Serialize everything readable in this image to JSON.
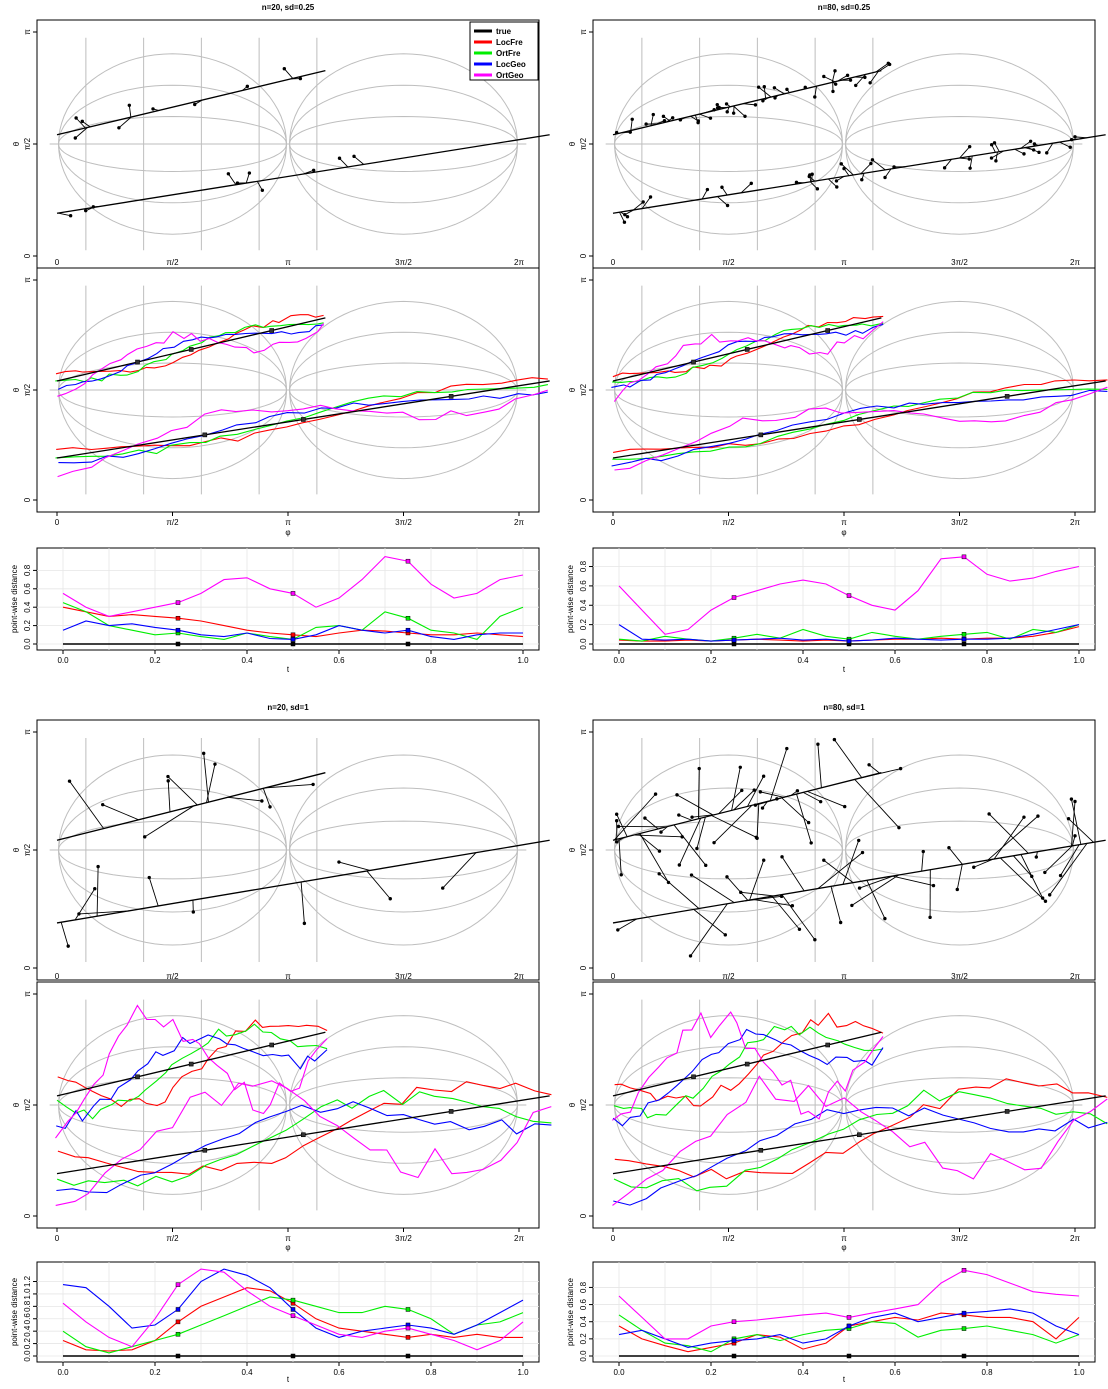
{
  "panels": [
    {
      "title": "n=20, sd=0.25",
      "scatter_ylabel": "θ",
      "curve_ylabel": "θ",
      "curve_xlabel": "φ",
      "dist_ylabel": "point-wise distance",
      "dist_xlabel": "t",
      "dist_yticks": [
        "0.0",
        "0.2",
        "0.4",
        "0.6",
        "0.8"
      ],
      "dist_ymax": 1.0
    },
    {
      "title": "n=80, sd=0.25",
      "scatter_ylabel": "θ",
      "curve_ylabel": "θ",
      "curve_xlabel": "φ",
      "dist_ylabel": "point-wise distance",
      "dist_xlabel": "t",
      "dist_yticks": [
        "0.0",
        "0.2",
        "0.4",
        "0.6",
        "0.8"
      ],
      "dist_ymax": 0.95
    },
    {
      "title": "n=20, sd=1",
      "scatter_ylabel": "θ",
      "curve_ylabel": "θ",
      "curve_xlabel": "φ",
      "dist_ylabel": "point-wise distance",
      "dist_xlabel": "t",
      "dist_yticks": [
        "0.0",
        "0.2",
        "0.4",
        "0.6",
        "0.8",
        "1.0",
        "1.2"
      ],
      "dist_ymax": 1.45
    },
    {
      "title": "n=80, sd=1",
      "scatter_ylabel": "θ",
      "curve_ylabel": "θ",
      "curve_xlabel": "φ",
      "dist_ylabel": "point-wise distance",
      "dist_xlabel": "t",
      "dist_yticks": [
        "0.0",
        "0.2",
        "0.4",
        "0.6",
        "0.8"
      ],
      "dist_ymax": 1.05
    }
  ],
  "axis_ticks": {
    "phi": [
      "0",
      "π/2",
      "π",
      "3π/2",
      "2π"
    ],
    "theta": [
      "0",
      "π/2",
      "π"
    ],
    "t": [
      "0.0",
      "0.2",
      "0.4",
      "0.6",
      "0.8",
      "1.0"
    ]
  },
  "legend": [
    {
      "label": "true",
      "color": "#000000"
    },
    {
      "label": "LocFre",
      "color": "#ff0000"
    },
    {
      "label": "OrtFre",
      "color": "#00ee00"
    },
    {
      "label": "LocGeo",
      "color": "#0000ff"
    },
    {
      "label": "OrtGeo",
      "color": "#ff00ff"
    }
  ],
  "colors": {
    "true": "#000000",
    "LocFre": "#ff0000",
    "OrtFre": "#00ee00",
    "LocGeo": "#0000ff",
    "OrtGeo": "#ff00ff",
    "grid": "#bebebe"
  },
  "chart_data": [
    {
      "type": "line",
      "panel": "n=20, sd=0.25",
      "x": [
        0.0,
        0.05,
        0.1,
        0.15,
        0.2,
        0.25,
        0.3,
        0.35,
        0.4,
        0.45,
        0.5,
        0.55,
        0.6,
        0.65,
        0.7,
        0.75,
        0.8,
        0.85,
        0.9,
        0.95,
        1.0
      ],
      "xlabel": "t",
      "ylabel": "point-wise distance",
      "ylim": [
        0,
        1.0
      ],
      "series": [
        {
          "name": "true",
          "values": [
            0,
            0,
            0,
            0,
            0,
            0,
            0,
            0,
            0,
            0,
            0,
            0,
            0,
            0,
            0,
            0,
            0,
            0,
            0,
            0,
            0
          ]
        },
        {
          "name": "LocFre",
          "values": [
            0.4,
            0.35,
            0.3,
            0.32,
            0.3,
            0.28,
            0.25,
            0.2,
            0.15,
            0.12,
            0.1,
            0.08,
            0.12,
            0.15,
            0.14,
            0.12,
            0.1,
            0.1,
            0.12,
            0.1,
            0.08
          ]
        },
        {
          "name": "OrtFre",
          "values": [
            0.45,
            0.35,
            0.2,
            0.15,
            0.1,
            0.12,
            0.08,
            0.05,
            0.12,
            0.08,
            0.05,
            0.18,
            0.2,
            0.15,
            0.35,
            0.28,
            0.15,
            0.12,
            0.05,
            0.3,
            0.4
          ]
        },
        {
          "name": "LocGeo",
          "values": [
            0.15,
            0.25,
            0.2,
            0.22,
            0.18,
            0.15,
            0.1,
            0.08,
            0.12,
            0.06,
            0.05,
            0.1,
            0.2,
            0.15,
            0.12,
            0.15,
            0.08,
            0.05,
            0.1,
            0.12,
            0.12
          ]
        },
        {
          "name": "OrtGeo",
          "values": [
            0.55,
            0.4,
            0.3,
            0.35,
            0.4,
            0.45,
            0.55,
            0.7,
            0.72,
            0.6,
            0.55,
            0.4,
            0.5,
            0.7,
            0.95,
            0.9,
            0.65,
            0.5,
            0.55,
            0.7,
            0.75
          ]
        }
      ]
    },
    {
      "type": "line",
      "panel": "n=80, sd=0.25",
      "x": [
        0.0,
        0.05,
        0.1,
        0.15,
        0.2,
        0.25,
        0.3,
        0.35,
        0.4,
        0.45,
        0.5,
        0.55,
        0.6,
        0.65,
        0.7,
        0.75,
        0.8,
        0.85,
        0.9,
        0.95,
        1.0
      ],
      "xlabel": "t",
      "ylabel": "point-wise distance",
      "ylim": [
        0,
        0.95
      ],
      "series": [
        {
          "name": "true",
          "values": [
            0,
            0,
            0,
            0,
            0,
            0,
            0,
            0,
            0,
            0,
            0,
            0,
            0,
            0,
            0,
            0,
            0,
            0,
            0,
            0,
            0
          ]
        },
        {
          "name": "LocFre",
          "values": [
            0.04,
            0.03,
            0.03,
            0.04,
            0.03,
            0.04,
            0.05,
            0.04,
            0.03,
            0.04,
            0.03,
            0.04,
            0.05,
            0.05,
            0.06,
            0.05,
            0.06,
            0.06,
            0.08,
            0.12,
            0.18
          ]
        },
        {
          "name": "OrtFre",
          "values": [
            0.05,
            0.03,
            0.08,
            0.05,
            0.03,
            0.06,
            0.1,
            0.06,
            0.15,
            0.08,
            0.05,
            0.12,
            0.08,
            0.05,
            0.08,
            0.1,
            0.12,
            0.05,
            0.15,
            0.12,
            0.2
          ]
        },
        {
          "name": "LocGeo",
          "values": [
            0.2,
            0.05,
            0.04,
            0.05,
            0.03,
            0.04,
            0.05,
            0.06,
            0.04,
            0.05,
            0.03,
            0.04,
            0.06,
            0.05,
            0.04,
            0.05,
            0.05,
            0.06,
            0.1,
            0.15,
            0.2
          ]
        },
        {
          "name": "OrtGeo",
          "values": [
            0.6,
            0.35,
            0.1,
            0.15,
            0.35,
            0.48,
            0.55,
            0.62,
            0.66,
            0.62,
            0.5,
            0.4,
            0.35,
            0.55,
            0.88,
            0.9,
            0.72,
            0.65,
            0.68,
            0.75,
            0.8
          ]
        }
      ]
    },
    {
      "type": "line",
      "panel": "n=20, sd=1",
      "x": [
        0.0,
        0.05,
        0.1,
        0.15,
        0.2,
        0.25,
        0.3,
        0.35,
        0.4,
        0.45,
        0.5,
        0.55,
        0.6,
        0.65,
        0.7,
        0.75,
        0.8,
        0.85,
        0.9,
        0.95,
        1.0
      ],
      "xlabel": "t",
      "ylabel": "point-wise distance",
      "ylim": [
        0,
        1.45
      ],
      "series": [
        {
          "name": "true",
          "values": [
            0,
            0,
            0,
            0,
            0,
            0,
            0,
            0,
            0,
            0,
            0,
            0,
            0,
            0,
            0,
            0,
            0,
            0,
            0,
            0,
            0
          ]
        },
        {
          "name": "LocFre",
          "values": [
            0.25,
            0.1,
            0.08,
            0.1,
            0.25,
            0.55,
            0.8,
            0.95,
            1.1,
            1.05,
            0.85,
            0.6,
            0.45,
            0.4,
            0.35,
            0.3,
            0.35,
            0.3,
            0.35,
            0.3,
            0.3
          ]
        },
        {
          "name": "OrtFre",
          "values": [
            0.4,
            0.15,
            0.05,
            0.15,
            0.25,
            0.35,
            0.5,
            0.65,
            0.8,
            0.95,
            0.9,
            0.8,
            0.7,
            0.7,
            0.8,
            0.75,
            0.6,
            0.35,
            0.5,
            0.55,
            0.7
          ]
        },
        {
          "name": "LocGeo",
          "values": [
            1.15,
            1.1,
            0.8,
            0.45,
            0.5,
            0.75,
            1.2,
            1.4,
            1.3,
            1.1,
            0.75,
            0.45,
            0.3,
            0.4,
            0.45,
            0.5,
            0.45,
            0.35,
            0.5,
            0.7,
            0.9
          ]
        },
        {
          "name": "OrtGeo",
          "values": [
            0.85,
            0.55,
            0.3,
            0.15,
            0.6,
            1.15,
            1.4,
            1.35,
            1.05,
            0.8,
            0.65,
            0.5,
            0.35,
            0.3,
            0.4,
            0.45,
            0.35,
            0.25,
            0.1,
            0.25,
            0.55
          ]
        }
      ]
    },
    {
      "type": "line",
      "panel": "n=80, sd=1",
      "x": [
        0.0,
        0.05,
        0.1,
        0.15,
        0.2,
        0.25,
        0.3,
        0.35,
        0.4,
        0.45,
        0.5,
        0.55,
        0.6,
        0.65,
        0.7,
        0.75,
        0.8,
        0.85,
        0.9,
        0.95,
        1.0
      ],
      "xlabel": "t",
      "ylabel": "point-wise distance",
      "ylim": [
        0,
        1.05
      ],
      "series": [
        {
          "name": "true",
          "values": [
            0,
            0,
            0,
            0,
            0,
            0,
            0,
            0,
            0,
            0,
            0,
            0,
            0,
            0,
            0,
            0,
            0,
            0,
            0,
            0,
            0
          ]
        },
        {
          "name": "LocFre",
          "values": [
            0.35,
            0.2,
            0.12,
            0.05,
            0.1,
            0.15,
            0.25,
            0.22,
            0.08,
            0.15,
            0.35,
            0.4,
            0.45,
            0.42,
            0.5,
            0.48,
            0.45,
            0.45,
            0.4,
            0.2,
            0.45
          ]
        },
        {
          "name": "OrtFre",
          "values": [
            0.48,
            0.3,
            0.15,
            0.12,
            0.05,
            0.2,
            0.25,
            0.18,
            0.25,
            0.3,
            0.32,
            0.4,
            0.38,
            0.22,
            0.3,
            0.32,
            0.35,
            0.3,
            0.25,
            0.15,
            0.25
          ]
        },
        {
          "name": "LocGeo",
          "values": [
            0.25,
            0.3,
            0.2,
            0.1,
            0.15,
            0.18,
            0.2,
            0.25,
            0.15,
            0.2,
            0.35,
            0.45,
            0.5,
            0.4,
            0.45,
            0.5,
            0.52,
            0.55,
            0.5,
            0.35,
            0.25
          ]
        },
        {
          "name": "OrtGeo",
          "values": [
            0.7,
            0.45,
            0.2,
            0.2,
            0.35,
            0.4,
            0.42,
            0.45,
            0.48,
            0.5,
            0.45,
            0.5,
            0.55,
            0.6,
            0.85,
            1.0,
            0.95,
            0.85,
            0.75,
            0.72,
            0.7
          ]
        }
      ]
    }
  ]
}
